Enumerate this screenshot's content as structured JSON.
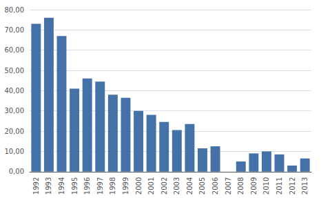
{
  "chart_data": {
    "type": "bar",
    "categories": [
      "1992",
      "1993",
      "1994",
      "1995",
      "1996",
      "1997",
      "1998",
      "1999",
      "2000",
      "2001",
      "2002",
      "2003",
      "2004",
      "2005",
      "2006",
      "2007",
      "2008",
      "2009",
      "2010",
      "2011",
      "2012",
      "2013"
    ],
    "values": [
      73.0,
      76.0,
      67.0,
      41.0,
      46.0,
      44.5,
      38.0,
      36.5,
      30.0,
      28.0,
      24.5,
      20.5,
      23.5,
      11.5,
      12.5,
      0.0,
      5.0,
      9.0,
      10.0,
      8.5,
      3.0,
      6.5
    ],
    "color": "#4472a8",
    "ylim": [
      0,
      80
    ],
    "yticks": [
      {
        "value": 0,
        "label": "0,00"
      },
      {
        "value": 10,
        "label": "10,00"
      },
      {
        "value": 20,
        "label": "20,00"
      },
      {
        "value": 30,
        "label": "30,00"
      },
      {
        "value": 40,
        "label": "40,00"
      },
      {
        "value": 50,
        "label": "50,00"
      },
      {
        "value": 60,
        "label": "60,00"
      },
      {
        "value": 70,
        "label": "70,00"
      },
      {
        "value": 80,
        "label": "80,00"
      }
    ],
    "grid": true
  }
}
